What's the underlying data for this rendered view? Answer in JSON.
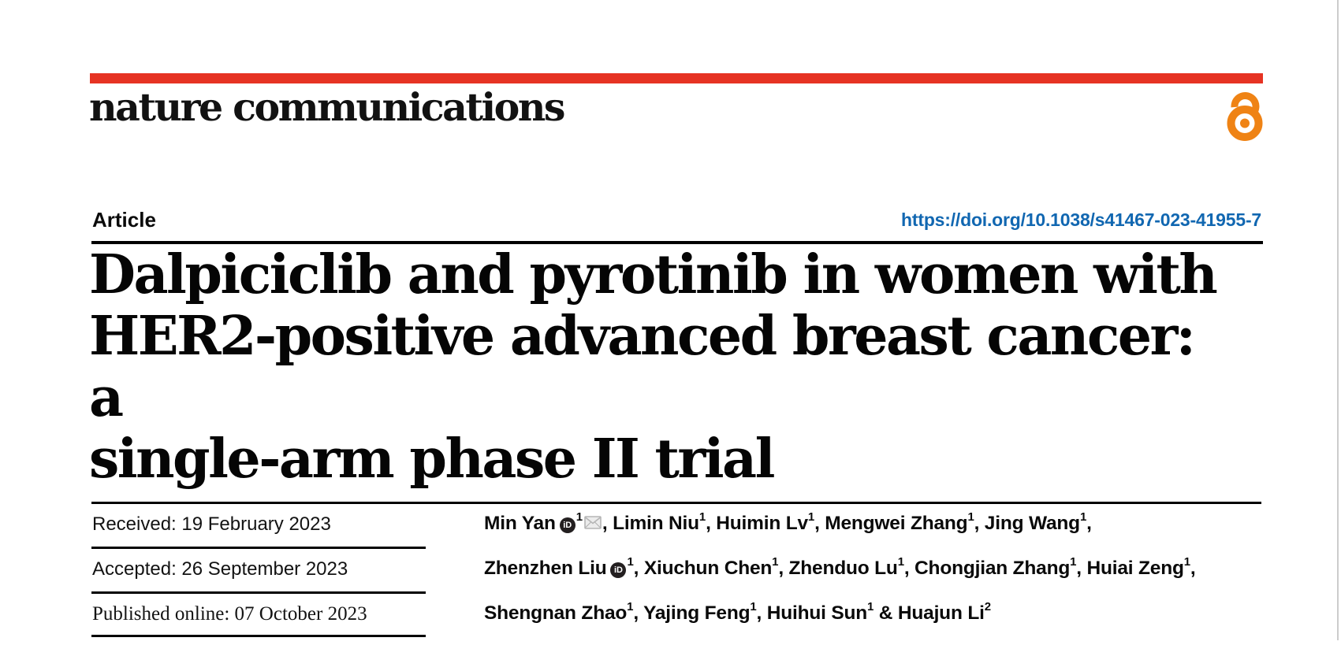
{
  "masthead": {
    "journal_name": "nature communications",
    "bar_color": "#e63323",
    "open_access_color": "#ef8315"
  },
  "article_header": {
    "type_label": "Article",
    "doi_link": "https://doi.org/10.1038/s41467-023-41955-7",
    "doi_color": "#1167b1"
  },
  "title_lines": [
    "Dalpiciclib and pyrotinib in women with",
    "HER2-positive advanced breast cancer: a",
    "single-arm phase II trial"
  ],
  "history": {
    "received": "Received: 19 February 2023",
    "accepted": "Accepted: 26 September 2023",
    "published": "Published online: 07 October 2023"
  },
  "icons": {
    "orcid_label": "iD",
    "orcid_icon": "orcid-id-badge",
    "email_icon": "envelope",
    "open_access_icon": "open-padlock"
  },
  "authors": {
    "lines": [
      [
        {
          "t": "name",
          "v": "Min Yan"
        },
        {
          "t": "orcid"
        },
        {
          "t": "sup",
          "v": "1"
        },
        {
          "t": "mail"
        },
        {
          "t": "name",
          "v": ", Limin Niu"
        },
        {
          "t": "sup",
          "v": "1"
        },
        {
          "t": "name",
          "v": ", Huimin Lv"
        },
        {
          "t": "sup",
          "v": "1"
        },
        {
          "t": "name",
          "v": ", Mengwei Zhang"
        },
        {
          "t": "sup",
          "v": "1"
        },
        {
          "t": "name",
          "v": ", Jing Wang"
        },
        {
          "t": "sup",
          "v": "1"
        },
        {
          "t": "name",
          "v": ","
        }
      ],
      [
        {
          "t": "name",
          "v": "Zhenzhen Liu"
        },
        {
          "t": "orcid"
        },
        {
          "t": "sup",
          "v": "1"
        },
        {
          "t": "name",
          "v": ", Xiuchun Chen"
        },
        {
          "t": "sup",
          "v": "1"
        },
        {
          "t": "name",
          "v": ", Zhenduo Lu"
        },
        {
          "t": "sup",
          "v": "1"
        },
        {
          "t": "name",
          "v": ", Chongjian Zhang"
        },
        {
          "t": "sup",
          "v": "1"
        },
        {
          "t": "name",
          "v": ", Huiai Zeng"
        },
        {
          "t": "sup",
          "v": "1"
        },
        {
          "t": "name",
          "v": ","
        }
      ],
      [
        {
          "t": "name",
          "v": "Shengnan Zhao"
        },
        {
          "t": "sup",
          "v": "1"
        },
        {
          "t": "name",
          "v": ", Yajing Feng"
        },
        {
          "t": "sup",
          "v": "1"
        },
        {
          "t": "name",
          "v": ", Huihui Sun"
        },
        {
          "t": "sup",
          "v": "1"
        },
        {
          "t": "name",
          "v": " & Huajun Li"
        },
        {
          "t": "sup",
          "v": "2"
        }
      ]
    ]
  }
}
